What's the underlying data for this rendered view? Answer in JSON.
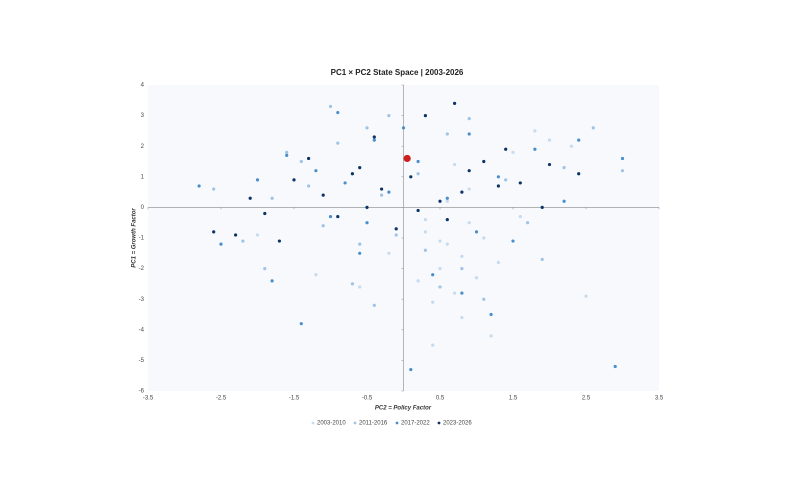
{
  "chart_data": {
    "type": "scatter",
    "title": "PC1 × PC2 State Space  |  2003-2026",
    "x_label": "PC2 = Policy Factor",
    "y_label": "PC1 = Growth Factor",
    "xlim": [
      -3.5,
      3.5
    ],
    "xticks": [
      -3.5,
      -2.5,
      -1.5,
      -0.5,
      0.5,
      1.5,
      2.5,
      3.5
    ],
    "ylim": [
      -6,
      4
    ],
    "yticks": [
      4,
      3,
      2,
      1,
      0,
      -1,
      -2,
      -3,
      -4,
      -5,
      -6
    ],
    "legend": "bottom",
    "series": [
      {
        "name": "2003-2010",
        "color": "#c6dbef",
        "x": [
          0.3,
          0.6,
          0.8,
          0.5,
          0.9,
          1.1,
          0.2,
          0.7,
          0.4,
          1.3,
          -0.2,
          0.6,
          0.9,
          1.6,
          2.0,
          0.1,
          -0.6,
          0.8,
          1.2,
          0.5,
          1.8,
          2.3,
          -1.2,
          0.3,
          0.7,
          1.0,
          2.5,
          -2.0,
          0.4,
          1.5
        ],
        "y": [
          -0.8,
          -1.2,
          -1.6,
          -2.0,
          -0.5,
          -1.0,
          -2.4,
          -2.8,
          -3.1,
          -1.8,
          -1.5,
          0.2,
          0.6,
          -0.3,
          2.2,
          1.0,
          -2.6,
          -3.6,
          -4.2,
          -1.1,
          2.5,
          2.0,
          -2.2,
          -0.4,
          1.4,
          -2.3,
          -2.9,
          -0.9,
          -4.5,
          1.8
        ]
      },
      {
        "name": "2011-2016",
        "color": "#9fc3e4",
        "x": [
          -1.4,
          -0.9,
          -0.5,
          -1.8,
          -1.1,
          0.3,
          -0.2,
          -2.2,
          -1.6,
          0.8,
          1.4,
          1.9,
          -0.7,
          -1.3,
          -0.4,
          0.6,
          2.2,
          2.6,
          -2.6,
          -0.1,
          1.1,
          -1.0,
          0.2,
          1.7,
          -0.3,
          0.9,
          3.0,
          -1.9,
          -0.6,
          0.5
        ],
        "y": [
          1.5,
          2.1,
          2.6,
          0.3,
          -0.6,
          -1.4,
          3.0,
          -1.1,
          1.8,
          -2.0,
          0.9,
          -1.7,
          -2.5,
          0.7,
          -3.2,
          2.4,
          1.3,
          2.6,
          0.6,
          -0.9,
          -3.0,
          3.3,
          1.1,
          -0.5,
          0.4,
          2.9,
          1.2,
          -2.0,
          -1.2,
          -2.6
        ]
      },
      {
        "name": "2017-2022",
        "color": "#4a8fcc",
        "x": [
          -1.2,
          -0.8,
          -0.4,
          0.2,
          0.6,
          1.0,
          -1.6,
          -2.0,
          -0.6,
          1.3,
          1.8,
          2.2,
          -2.8,
          -1.0,
          0.0,
          0.4,
          0.8,
          -0.2,
          1.5,
          2.4,
          -1.4,
          -0.9,
          0.9,
          1.2,
          -2.5,
          -1.8,
          3.0,
          -0.5,
          2.9,
          0.1
        ],
        "y": [
          1.2,
          0.8,
          2.2,
          1.5,
          0.3,
          -0.8,
          1.7,
          0.9,
          -1.5,
          1.0,
          1.9,
          0.2,
          0.7,
          -0.3,
          2.6,
          -2.2,
          -2.8,
          0.5,
          -1.1,
          2.2,
          -3.8,
          3.1,
          2.4,
          -3.5,
          -1.2,
          -2.4,
          1.6,
          -0.5,
          -5.2,
          -5.3
        ]
      },
      {
        "name": "2023-2026",
        "color": "#0c3466",
        "x": [
          -1.5,
          -1.1,
          -0.7,
          -0.3,
          0.1,
          0.5,
          0.9,
          1.3,
          -1.9,
          -2.3,
          -0.9,
          -0.5,
          0.3,
          0.7,
          1.1,
          -1.3,
          1.6,
          2.0,
          -2.1,
          -0.1,
          0.6,
          0.8,
          1.4,
          -1.7,
          -0.4,
          0.2,
          2.4,
          -2.6,
          1.9,
          -0.6
        ],
        "y": [
          0.9,
          0.4,
          1.1,
          0.6,
          1.0,
          0.2,
          1.2,
          0.7,
          -0.2,
          -0.9,
          -0.3,
          0.0,
          3.0,
          3.4,
          1.5,
          1.6,
          0.8,
          1.4,
          0.3,
          -0.7,
          -0.4,
          0.5,
          1.9,
          -1.1,
          2.3,
          -0.1,
          1.1,
          -0.8,
          0.0,
          1.3
        ]
      }
    ],
    "highlight": {
      "x": 0.05,
      "y": 1.6,
      "color": "#cc1f1f"
    }
  }
}
